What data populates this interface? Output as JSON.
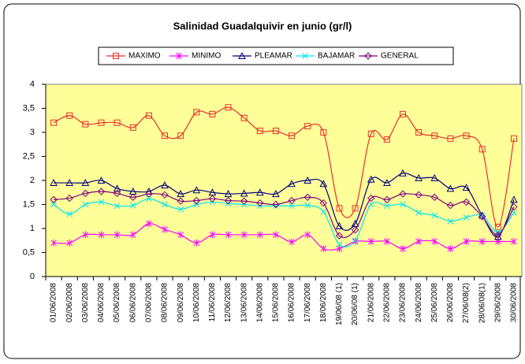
{
  "chart_data": {
    "type": "line",
    "title": "Salinidad Guadalquivir en junio (gr/l)",
    "categories": [
      "01/06/2008",
      "02/06/2008",
      "03/06/2008",
      "04/06/2008",
      "05/06/2008",
      "06/06/2008",
      "07/06/2008",
      "08/06/2008",
      "09/06/2008",
      "10/06/2008",
      "11/06/2008",
      "12/06/2008",
      "13/06/2008",
      "14/06/2008",
      "15/06/2008",
      "16/06/2008",
      "17/06/2008",
      "18/06/2008",
      "19/06/08 (1)",
      "20/06/08 (1)",
      "21/06/2008",
      "22/06/2008",
      "23/06/2008",
      "24/06/2008",
      "25/06/2008",
      "26/06/2008",
      "27/06/08(2)",
      "28/06/08(1)",
      "29/06/2008",
      "30/06/2008"
    ],
    "series": [
      {
        "name": "MAXIMO",
        "color": "#e8302a",
        "marker": "square",
        "values": [
          3.2,
          3.35,
          3.17,
          3.2,
          3.2,
          3.1,
          3.35,
          2.93,
          2.93,
          3.42,
          3.38,
          3.52,
          3.3,
          3.03,
          3.03,
          2.93,
          3.13,
          3.0,
          1.42,
          1.42,
          2.97,
          2.85,
          3.38,
          3.0,
          2.93,
          2.87,
          2.93,
          2.65,
          1.03,
          2.87
        ]
      },
      {
        "name": "MINIMO",
        "color": "#ff00ff",
        "marker": "star",
        "values": [
          0.7,
          0.7,
          0.87,
          0.87,
          0.87,
          0.87,
          1.1,
          0.98,
          0.87,
          0.7,
          0.87,
          0.87,
          0.87,
          0.87,
          0.87,
          0.72,
          0.87,
          0.58,
          0.58,
          0.73,
          0.73,
          0.73,
          0.58,
          0.73,
          0.73,
          0.58,
          0.73,
          0.73,
          0.73,
          0.73
        ]
      },
      {
        "name": "PLEAMAR",
        "color": "#000080",
        "marker": "triangle",
        "values": [
          1.95,
          1.95,
          1.95,
          2.0,
          1.83,
          1.77,
          1.77,
          1.9,
          1.72,
          1.8,
          1.75,
          1.72,
          1.73,
          1.75,
          1.72,
          1.93,
          2.0,
          1.93,
          1.05,
          1.1,
          2.02,
          1.95,
          2.15,
          2.05,
          2.05,
          1.83,
          1.85,
          1.27,
          0.83,
          1.6
        ]
      },
      {
        "name": "BAJAMAR",
        "color": "#00e5f0",
        "marker": "x",
        "values": [
          1.5,
          1.3,
          1.5,
          1.55,
          1.47,
          1.48,
          1.62,
          1.5,
          1.4,
          1.5,
          1.55,
          1.52,
          1.5,
          1.47,
          1.47,
          1.47,
          1.48,
          1.35,
          0.67,
          0.75,
          1.5,
          1.47,
          1.5,
          1.33,
          1.27,
          1.15,
          1.23,
          1.27,
          0.92,
          1.33
        ]
      },
      {
        "name": "GENERAL",
        "color": "#800080",
        "marker": "diamond",
        "values": [
          1.6,
          1.63,
          1.73,
          1.77,
          1.73,
          1.65,
          1.72,
          1.7,
          1.57,
          1.58,
          1.62,
          1.58,
          1.57,
          1.53,
          1.5,
          1.58,
          1.65,
          1.53,
          0.85,
          0.97,
          1.63,
          1.6,
          1.72,
          1.7,
          1.65,
          1.48,
          1.55,
          1.25,
          0.87,
          1.45
        ]
      }
    ],
    "ylim": [
      0,
      4
    ],
    "yticks": [
      0,
      {
        "value": 0.5,
        "label": "0,5"
      },
      1,
      {
        "value": 1.5,
        "label": "1,5"
      },
      2,
      {
        "value": 2.5,
        "label": "2,5"
      },
      3,
      {
        "value": 3.5,
        "label": "3,5"
      },
      4
    ],
    "legend": "top",
    "plot_background": "#ffff99"
  }
}
